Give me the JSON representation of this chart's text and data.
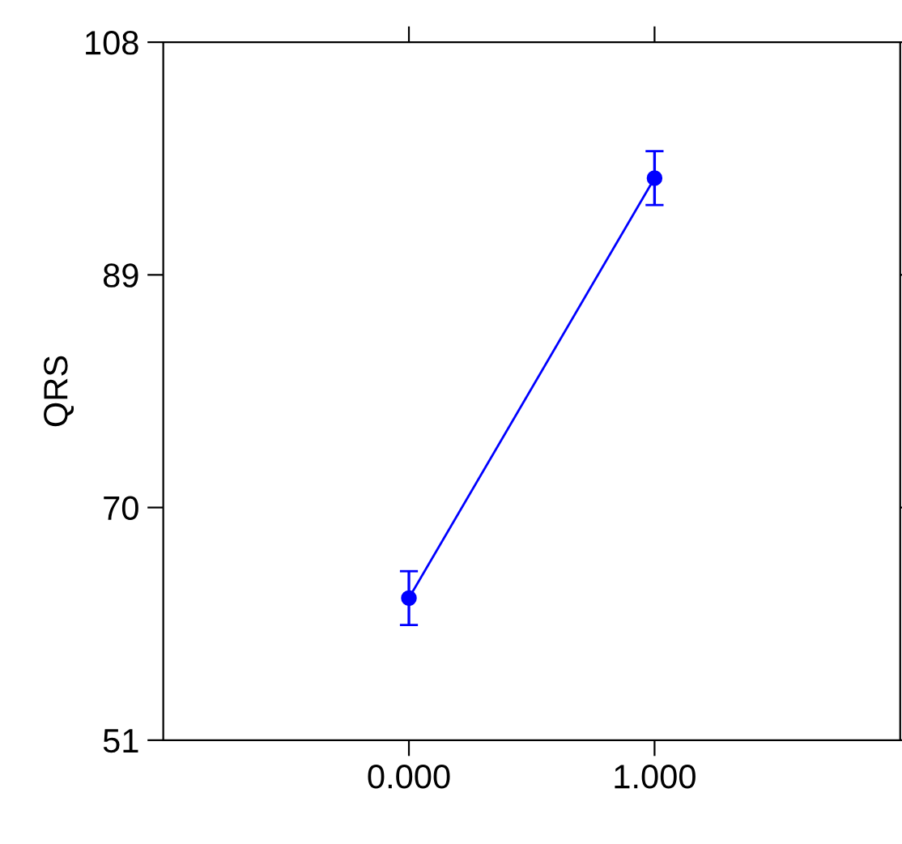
{
  "chart_data": {
    "type": "line",
    "ylabel": "QRS",
    "x": [
      0,
      1
    ],
    "series": [
      {
        "color": "#0000ff",
        "values": [
          62.6,
          96.9
        ],
        "errors": [
          2.2,
          2.2
        ]
      }
    ],
    "xlim": [
      -1,
      2
    ],
    "xticks": [
      {
        "value": 0,
        "label": "0.000"
      },
      {
        "value": 1,
        "label": "1.000"
      }
    ],
    "ylim": [
      51,
      108
    ],
    "yticks": [
      51,
      70,
      89,
      108
    ],
    "marker": "circle",
    "line_style": "solid",
    "grid": false,
    "legend": false
  }
}
